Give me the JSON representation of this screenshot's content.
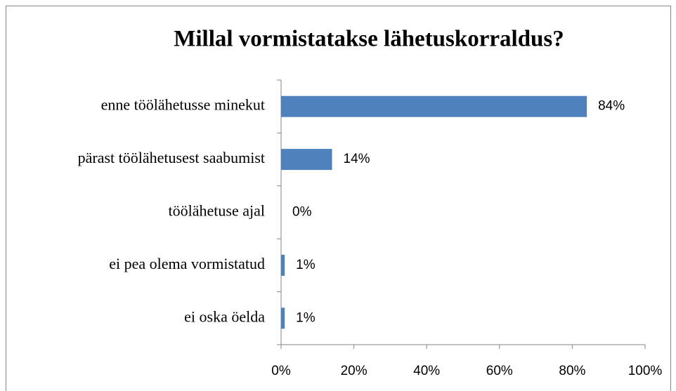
{
  "chart_data": {
    "type": "bar",
    "orientation": "horizontal",
    "title": "Millal vormistatakse lähetuskorraldus?",
    "categories": [
      "enne töölähetusse minekut",
      "pärast töölähetusest saabumist",
      "töölähetuse ajal",
      "ei pea olema vormistatud",
      "ei oska öelda"
    ],
    "values": [
      84,
      14,
      0,
      1,
      1
    ],
    "value_labels": [
      "84%",
      "14%",
      "0%",
      "1%",
      "1%"
    ],
    "color": "#4f81bd",
    "xlim": [
      0,
      100
    ],
    "xticks": [
      {
        "value": 0,
        "label": "0%"
      },
      {
        "value": 20,
        "label": "20%"
      },
      {
        "value": 40,
        "label": "40%"
      },
      {
        "value": 60,
        "label": "60%"
      },
      {
        "value": 80,
        "label": "80%"
      },
      {
        "value": 100,
        "label": "100%"
      }
    ],
    "grid": false
  }
}
